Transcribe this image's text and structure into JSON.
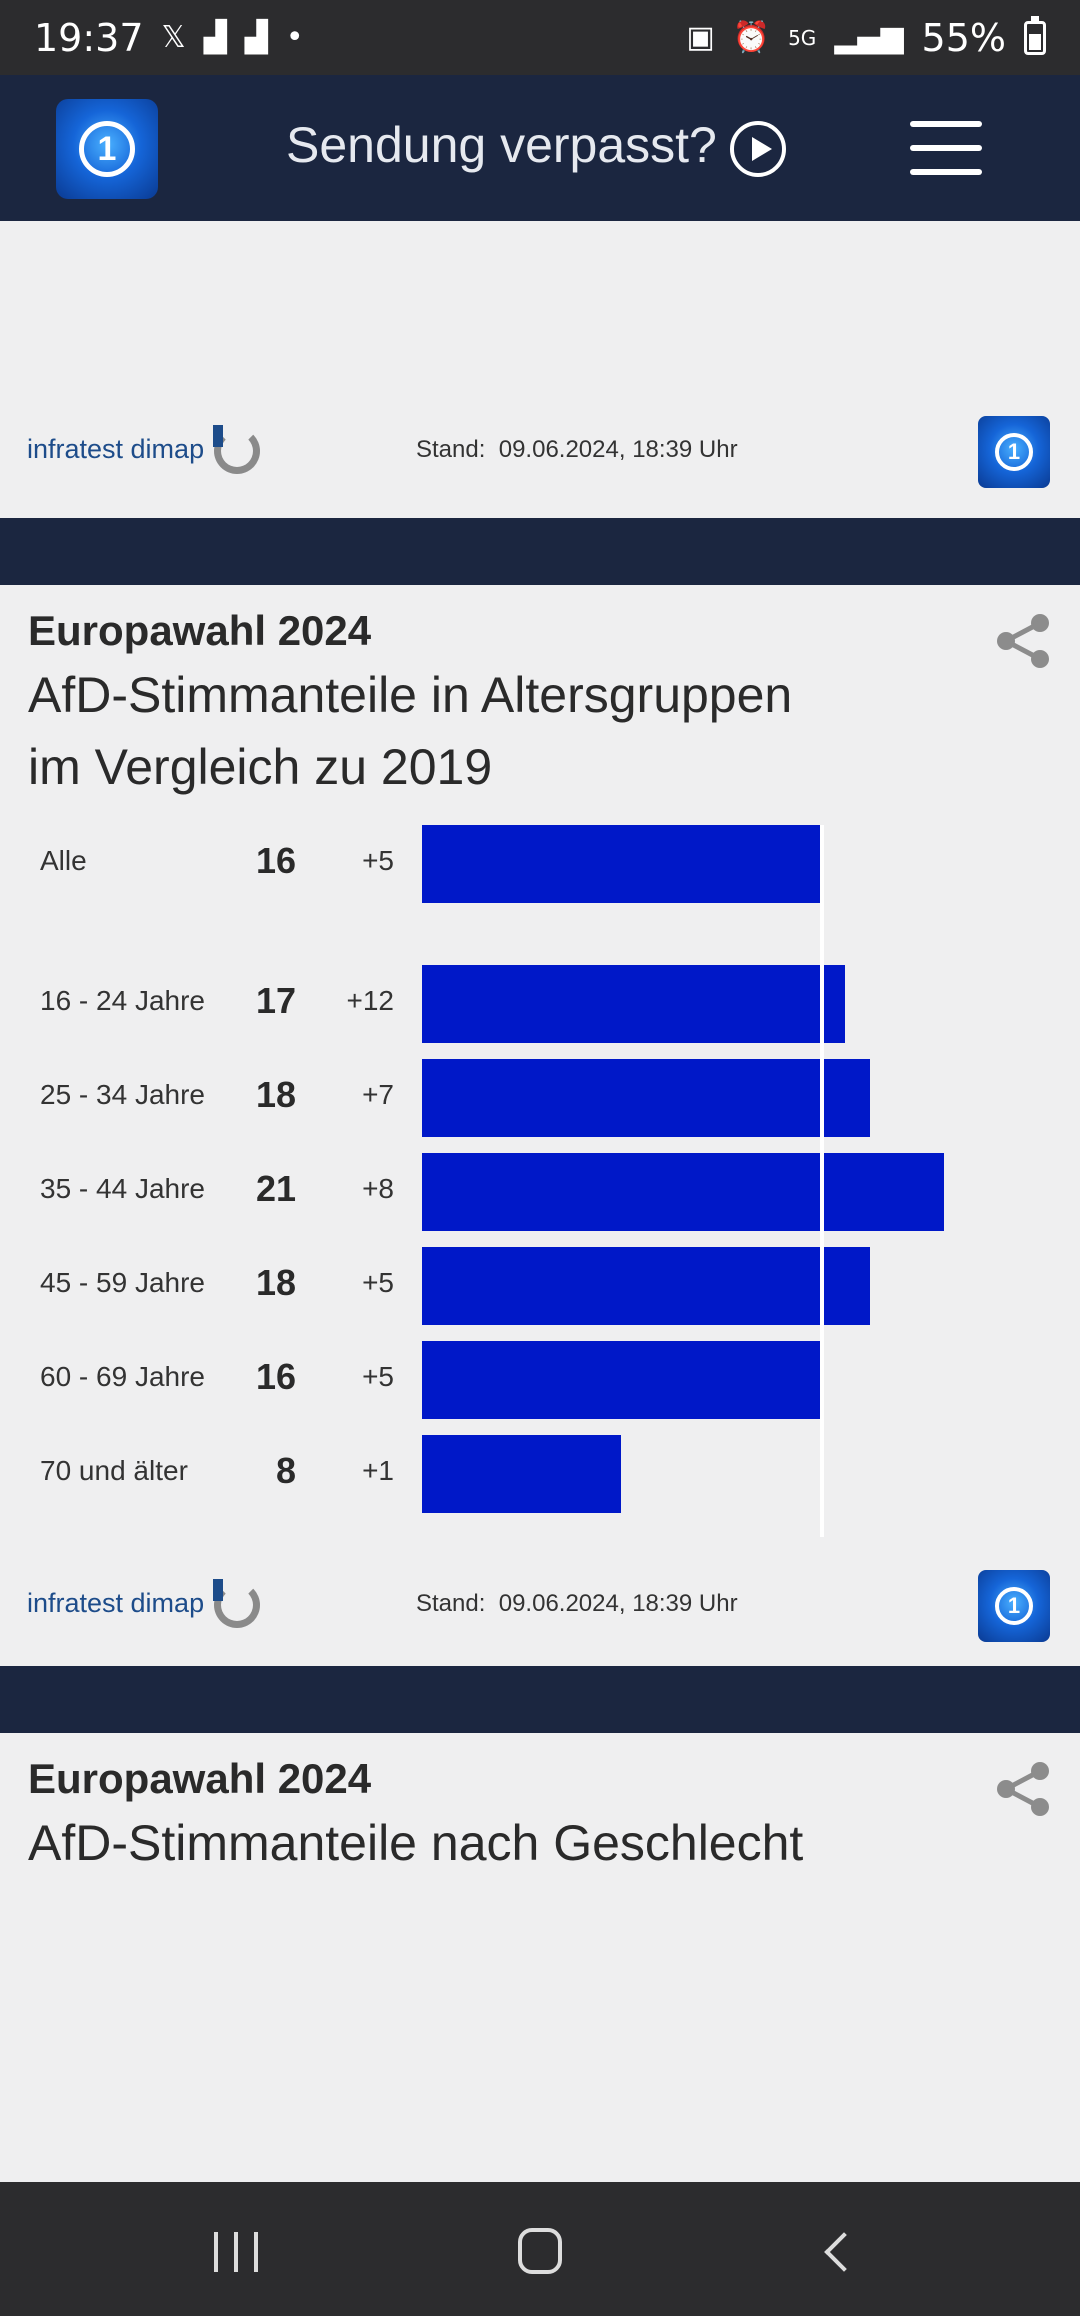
{
  "status_bar": {
    "time": "19:37",
    "battery_percent": "55%",
    "icons": [
      "x-icon",
      "signal-bars-icon",
      "signal-bars-icon",
      "dot-icon",
      "battery-saver-icon",
      "alarm-icon",
      "5g-icon",
      "signal-strength-icon",
      "battery-icon"
    ]
  },
  "header": {
    "title": "Sendung verpasst?",
    "logo": "tagesschau-logo",
    "logo_glyph": "1"
  },
  "card1": {
    "source": "infratest dimap",
    "stand_label": "Stand:",
    "stand_value": "09.06.2024, 18:39 Uhr"
  },
  "card2": {
    "kicker": "Europawahl 2024",
    "title_line1": "AfD-Stimmanteile in Altersgruppen",
    "title_line2": "im Vergleich zu 2019",
    "source": "infratest dimap",
    "stand_label": "Stand:",
    "stand_value": "09.06.2024, 18:39 Uhr"
  },
  "card3": {
    "kicker": "Europawahl 2024",
    "title": "AfD-Stimmanteile nach Geschlecht"
  },
  "chart_data": {
    "type": "bar",
    "orientation": "horizontal",
    "categories": [
      "Alle",
      "16 - 24 Jahre",
      "25 - 34 Jahre",
      "35 - 44 Jahre",
      "45 - 59 Jahre",
      "60 - 69 Jahre",
      "70 und älter"
    ],
    "values": [
      16,
      17,
      18,
      21,
      18,
      16,
      8
    ],
    "changes": [
      "+5",
      "+12",
      "+7",
      "+8",
      "+5",
      "+5",
      "+1"
    ],
    "reference_line_value": 16,
    "bar_color": "#0018c8",
    "title": "AfD-Stimmanteile in Altersgruppen im Vergleich zu 2019"
  },
  "colors": {
    "header_bg": "#1b2640",
    "bar": "#0018c8",
    "page_bg": "#efeff0"
  }
}
